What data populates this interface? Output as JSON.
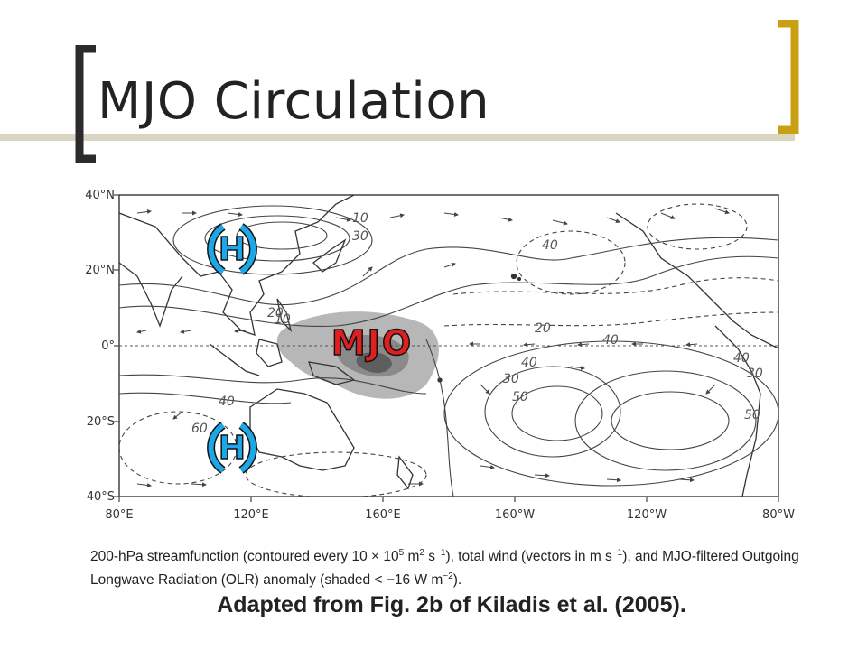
{
  "slide": {
    "title": "MJO Circulation",
    "accent_colors": {
      "bracket_left": "#2b2b2b",
      "bracket_right": "#c9a012",
      "title_rule": "#d8d6c0"
    }
  },
  "map": {
    "lat_labels": [
      "40°N",
      "20°N",
      "0°",
      "20°S",
      "40°S"
    ],
    "lon_labels": [
      "80°E",
      "120°E",
      "160°E",
      "160°W",
      "120°W",
      "80°W"
    ],
    "contour_labels": [
      "10",
      "30",
      "40",
      "40",
      "20",
      "40",
      "30",
      "30",
      "40",
      "50",
      "50",
      "10",
      "20",
      "40",
      "60"
    ],
    "overlay_labels": {
      "high_north": "H",
      "high_south": "H",
      "mjo": "MJO"
    },
    "colors": {
      "high_symbol": "#1ea7e6",
      "mjo_text": "#e02020",
      "olr_shading_light": "#aaaaaa",
      "olr_shading_dark": "#6a6a6a"
    }
  },
  "caption": {
    "p1": "200-hPa streamfunction (contoured every 10 × 10",
    "p1_sup": "5",
    "p2": " m",
    "p2_sup": "2",
    "p3": " s",
    "p3_sup": "−1",
    "p4": "), total wind (vectors in m s",
    "p4_sup": "−1",
    "p5": "), and MJO-filtered Outgoing Longwave Radiation (OLR) anomaly (shaded < −16 W m",
    "p5_sup": "−2",
    "p6": ")."
  },
  "credit": "Adapted from Fig. 2b of Kiladis et al. (2005)."
}
